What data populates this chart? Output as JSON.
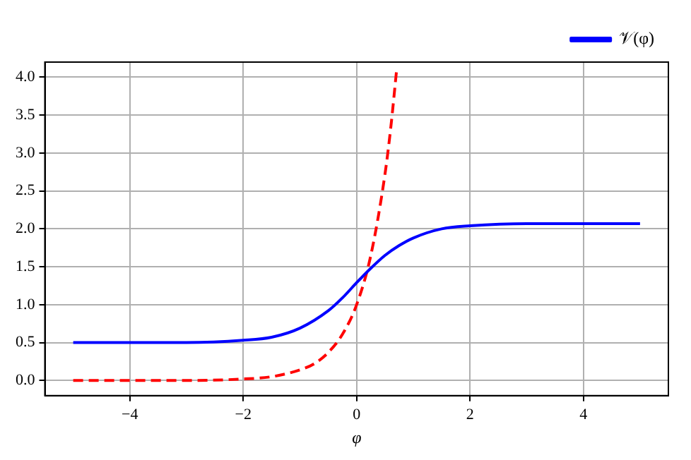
{
  "chart_data": {
    "type": "line",
    "xlabel": "φ",
    "legend": "top right",
    "grid": true,
    "marker": "none",
    "xlim": [
      -5.5,
      5.5
    ],
    "ylim": [
      -0.2,
      4.2
    ],
    "xticks": [
      {
        "value": -4,
        "label": "−4"
      },
      {
        "value": -2,
        "label": "−2"
      },
      0,
      2,
      4
    ],
    "yticks": [
      {
        "value": 0,
        "label": "0.0"
      },
      0.5,
      {
        "value": 1,
        "label": "1.0"
      },
      1.5,
      {
        "value": 2,
        "label": "2.0"
      },
      2.5,
      {
        "value": 3,
        "label": "3.0"
      },
      3.5,
      {
        "value": 4,
        "label": "4.0"
      }
    ],
    "series": [
      {
        "name": "𝒱(φ)",
        "color": "#0000ff",
        "line_style": "solid",
        "x": [
          -5,
          -3,
          -2,
          -1.5,
          -1,
          -0.5,
          -0.25,
          0,
          0.25,
          0.5,
          0.75,
          1,
          1.5,
          2,
          3,
          5
        ],
        "values": [
          0.5,
          0.5,
          0.53,
          0.57,
          0.69,
          0.92,
          1.09,
          1.29,
          1.48,
          1.65,
          1.78,
          1.88,
          2.0,
          2.04,
          2.07,
          2.07
        ]
      },
      {
        "color": "#ff0000",
        "line_style": "dashed",
        "x": [
          -5,
          -3,
          -2,
          -1.5,
          -1,
          -0.75,
          -0.5,
          -0.25,
          0,
          0.25,
          0.5,
          0.6,
          0.71
        ],
        "values": [
          0.0,
          0.0,
          0.02,
          0.05,
          0.14,
          0.22,
          0.37,
          0.61,
          1.0,
          1.65,
          2.72,
          3.32,
          4.13
        ]
      }
    ]
  }
}
